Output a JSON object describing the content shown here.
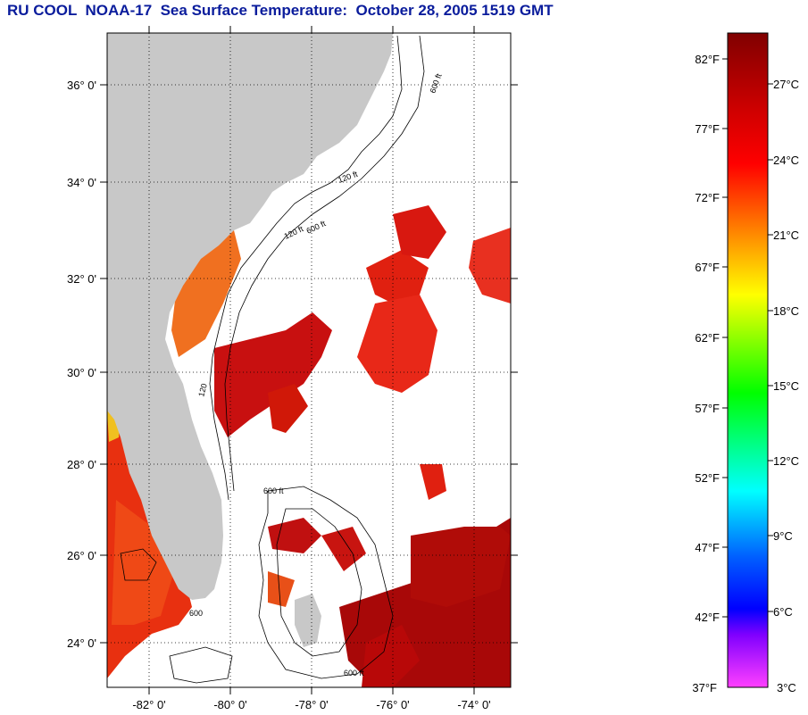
{
  "title": "RU COOL  NOAA-17  Sea Surface Temperature:  October 28, 2005 1519 GMT",
  "map": {
    "lat_labels": [
      "36° 0'",
      "34° 0'",
      "32° 0'",
      "30° 0'",
      "28° 0'",
      "26° 0'",
      "24° 0'"
    ],
    "lon_labels": [
      "-82° 0'",
      "-80° 0'",
      "-78° 0'",
      "-76° 0'",
      "-74° 0'"
    ],
    "contour_labels": [
      "600 ft",
      "120 ft",
      "120 ft",
      "600 ft",
      "120",
      "600",
      "600 ft",
      "600 ft"
    ],
    "land_color": "#c8c8c8",
    "no_data_color": "#ffffff"
  },
  "colorbar": {
    "fahrenheit_labels": [
      "82°F",
      "77°F",
      "72°F",
      "67°F",
      "62°F",
      "57°F",
      "52°F",
      "47°F",
      "42°F",
      "37°F"
    ],
    "celsius_labels": [
      "27°C",
      "24°C",
      "21°C",
      "18°C",
      "15°C",
      "12°C",
      "9°C",
      "6°C",
      "3°C"
    ],
    "range_c": [
      3,
      28.5
    ],
    "colors_top_to_bottom": [
      "#800000",
      "#ff0000",
      "#ff8000",
      "#ffff00",
      "#00ff00",
      "#00ffff",
      "#0000ff",
      "#8000ff",
      "#ff40ff"
    ]
  }
}
